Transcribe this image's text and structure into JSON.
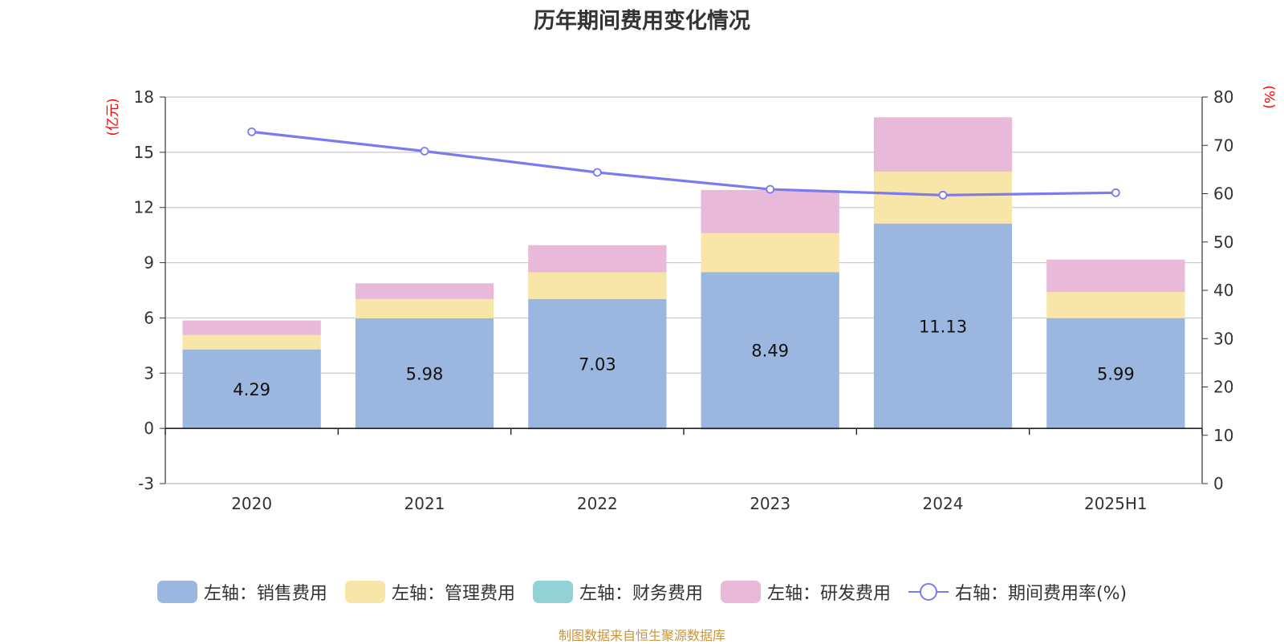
{
  "chart_data": {
    "type": "bar",
    "title": "历年期间费用变化情况",
    "categories": [
      "2020",
      "2021",
      "2022",
      "2023",
      "2024",
      "2025H1"
    ],
    "left_axis": {
      "unit": "(亿元)",
      "ylim": [
        -3,
        18
      ],
      "ticks": [
        -3,
        0,
        3,
        6,
        9,
        12,
        15,
        18
      ]
    },
    "right_axis": {
      "unit": "(%)",
      "ylim": [
        0,
        80
      ],
      "ticks": [
        0,
        10,
        20,
        30,
        40,
        50,
        60,
        70,
        80
      ]
    },
    "series": [
      {
        "name": "左轴：销售费用",
        "kind": "bar",
        "axis": "left",
        "color": "#9bb7e0",
        "values": [
          4.29,
          5.98,
          7.03,
          8.49,
          11.13,
          5.99
        ]
      },
      {
        "name": "左轴：管理费用",
        "kind": "bar",
        "axis": "left",
        "color": "#f8e6a8",
        "values": [
          0.78,
          1.05,
          1.45,
          2.12,
          2.82,
          1.42
        ]
      },
      {
        "name": "左轴：财务费用",
        "kind": "bar",
        "axis": "left",
        "color": "#92d2d4",
        "values": [
          -0.03,
          -0.04,
          -0.05,
          -0.06,
          -0.05,
          -0.02
        ]
      },
      {
        "name": "左轴：研发费用",
        "kind": "bar",
        "axis": "left",
        "color": "#e8b9d9",
        "values": [
          0.79,
          0.85,
          1.47,
          2.34,
          2.95,
          1.76
        ]
      },
      {
        "name": "右轴：期间费用率(%)",
        "kind": "line",
        "axis": "right",
        "color": "#7b7bef",
        "values": [
          72.8,
          68.8,
          64.4,
          60.9,
          59.7,
          60.2
        ]
      }
    ],
    "data_labels": [
      "4.29",
      "5.98",
      "7.03",
      "8.49",
      "11.13",
      "5.99"
    ],
    "grid": true,
    "legend_position": "bottom"
  },
  "source_note": "制图数据来自恒生聚源数据库"
}
